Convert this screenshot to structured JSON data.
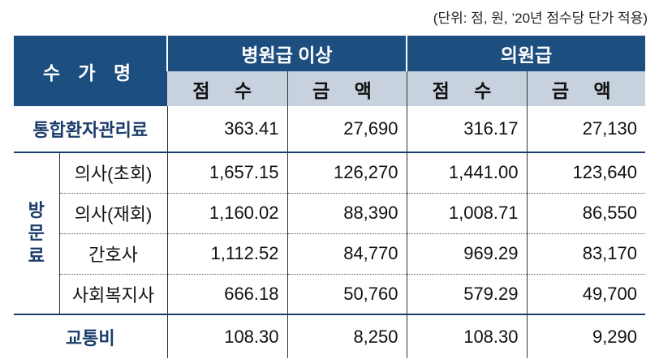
{
  "unit_note": "(단위: 점, 원, ’20년 점수당 단가 적용)",
  "header": {
    "name": "수 가 명",
    "group1": "병원급 이상",
    "group2": "의원급",
    "score": "점 수",
    "amount": "금 액"
  },
  "rows": {
    "integrated": {
      "label": "통합환자관리료",
      "v": [
        "363.41",
        "27,690",
        "316.17",
        "27,130"
      ]
    },
    "visit_group": "방\n문\n료",
    "doctor_first": {
      "label": "의사(초회)",
      "v": [
        "1,657.15",
        "126,270",
        "1,441.00",
        "123,640"
      ]
    },
    "doctor_repeat": {
      "label": "의사(재회)",
      "v": [
        "1,160.02",
        "88,390",
        "1,008.71",
        "86,550"
      ]
    },
    "nurse": {
      "label": "간호사",
      "v": [
        "1,112.52",
        "84,770",
        "969.29",
        "83,170"
      ]
    },
    "social_worker": {
      "label": "사회복지사",
      "v": [
        "666.18",
        "50,760",
        "579.29",
        "49,700"
      ]
    },
    "transport": {
      "label": "교통비",
      "v": [
        "108.30",
        "8,250",
        "108.30",
        "9,290"
      ]
    }
  },
  "colors": {
    "header_dark": "#1c4e80",
    "header_light": "#c8d1de",
    "label_text": "#1c3d6b"
  }
}
